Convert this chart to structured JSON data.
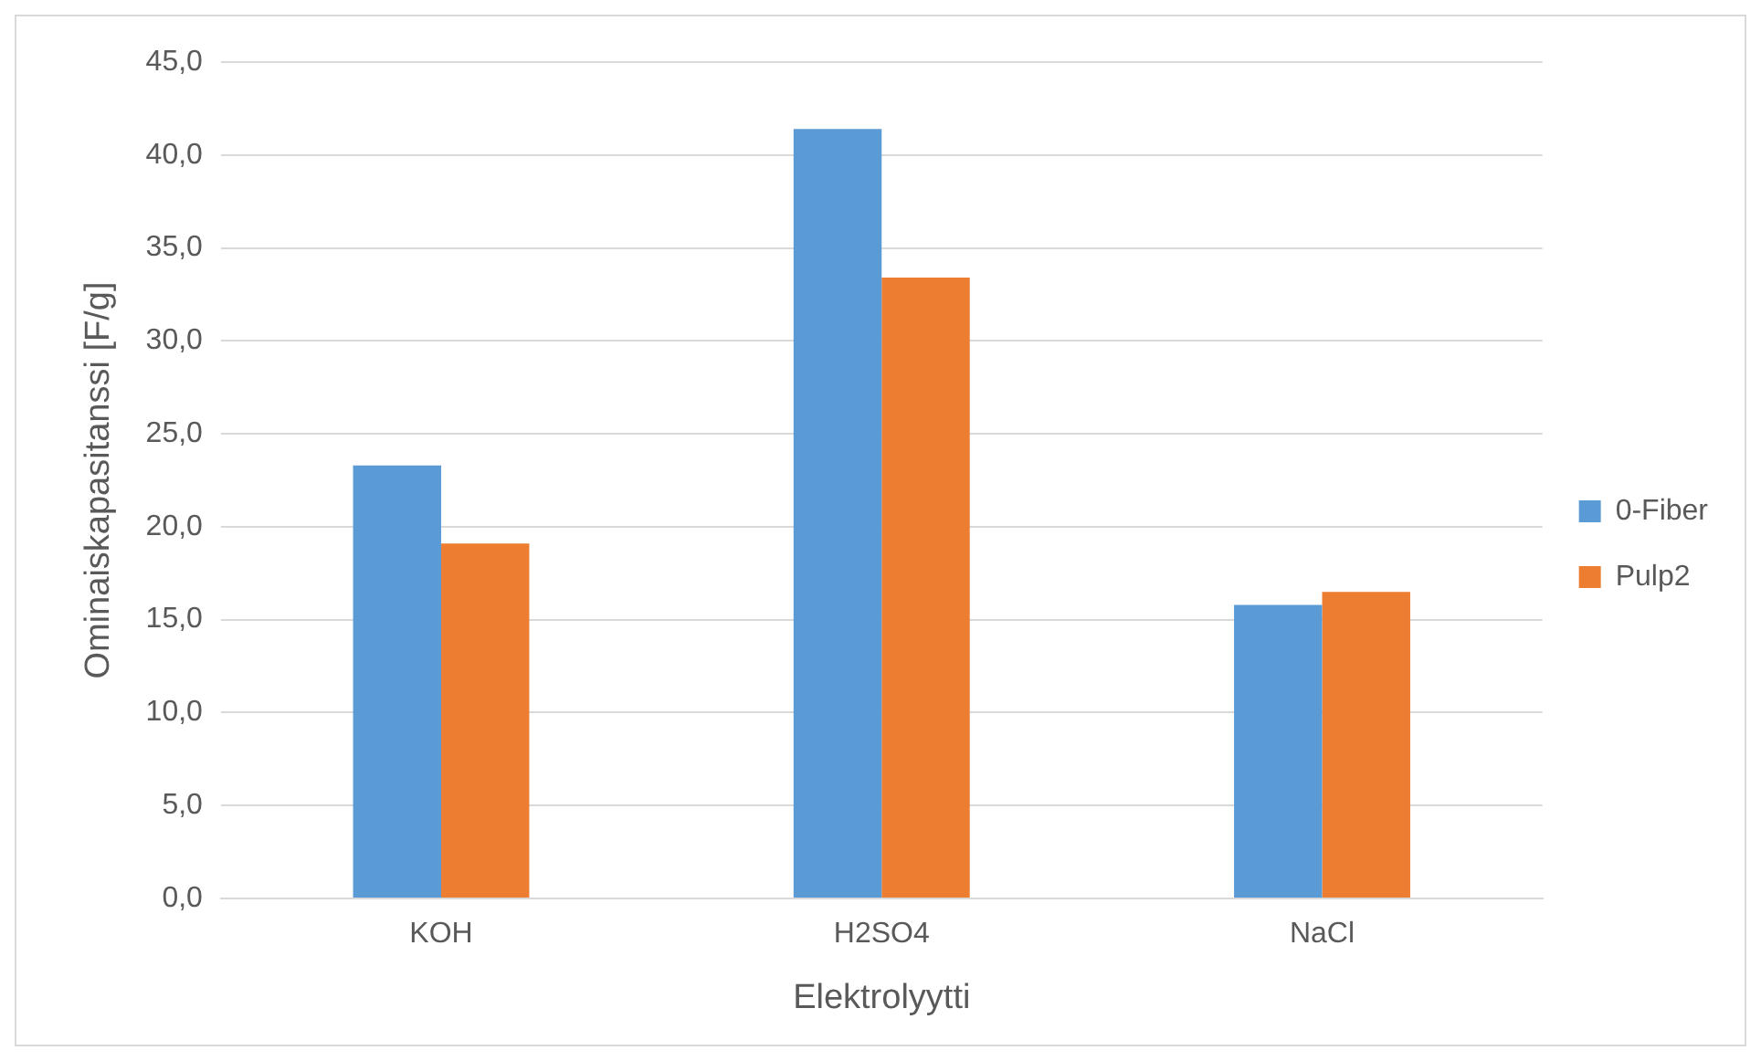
{
  "chart_data": {
    "type": "bar",
    "xlabel": "Elektrolyytti",
    "ylabel": "Ominaiskapasitanssi [F/g]",
    "categories": [
      "KOH",
      "H2SO4",
      "NaCl"
    ],
    "series": [
      {
        "name": "0-Fiber",
        "color": "#5b9bd5",
        "values": [
          23.3,
          41.4,
          15.8
        ]
      },
      {
        "name": "Pulp2",
        "color": "#ed7d31",
        "values": [
          19.1,
          33.4,
          16.5
        ]
      }
    ],
    "ylim": [
      0,
      45
    ],
    "yticks": [
      {
        "value": 0,
        "label": "0,0"
      },
      {
        "value": 5,
        "label": "5,0"
      },
      {
        "value": 10,
        "label": "10,0"
      },
      {
        "value": 15,
        "label": "15,0"
      },
      {
        "value": 20,
        "label": "20,0"
      },
      {
        "value": 25,
        "label": "25,0"
      },
      {
        "value": 30,
        "label": "30,0"
      },
      {
        "value": 35,
        "label": "35,0"
      },
      {
        "value": 40,
        "label": "40,0"
      },
      {
        "value": 45,
        "label": "45,0"
      }
    ],
    "grid": "y",
    "legend": "right"
  }
}
